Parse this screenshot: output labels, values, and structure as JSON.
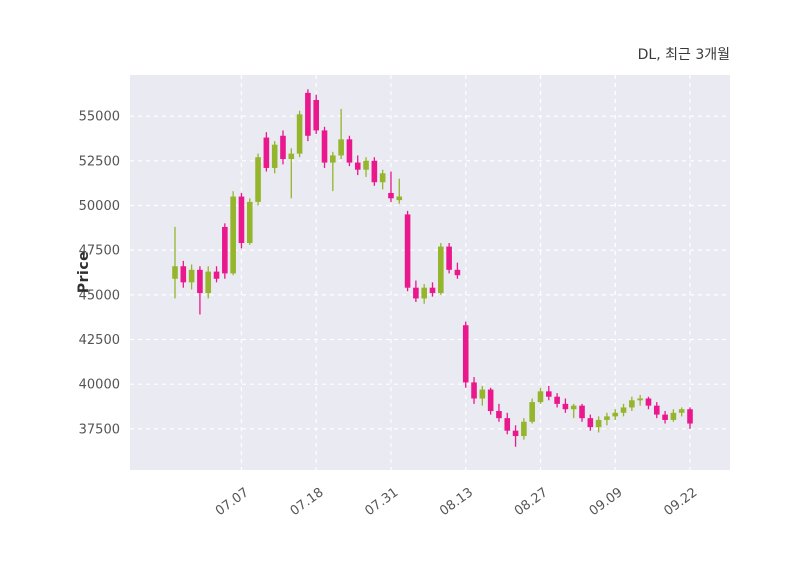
{
  "header": {
    "title": "DL, 최근 3개월"
  },
  "chart_data": {
    "type": "candlestick",
    "title": "DL, 최근 3개월",
    "xlabel": "",
    "ylabel": "Price",
    "ylim": [
      35200,
      57300
    ],
    "yticks": [
      37500,
      40000,
      42500,
      45000,
      47500,
      50000,
      52500,
      55000
    ],
    "xtick_labels": [
      "07.07",
      "07.18",
      "07.31",
      "08.13",
      "08.27",
      "09.09",
      "09.22"
    ],
    "xtick_indices": [
      8,
      17,
      26,
      35,
      44,
      53,
      62
    ],
    "grid": {
      "visible": true,
      "style": "dashed",
      "color": "#ffffff"
    },
    "legend": "none",
    "colors": {
      "up": "#94b52c",
      "down": "#e9188c",
      "plot_bg": "#eaeaf2",
      "tick_text": "#555555",
      "title_text": "#3a3a3a"
    },
    "candles_format": "[open, high, low, close]",
    "candles": [
      [
        45900,
        48800,
        44800,
        46600
      ],
      [
        46600,
        46900,
        45400,
        45700
      ],
      [
        45700,
        46700,
        45300,
        46400
      ],
      [
        46400,
        46600,
        43900,
        45100
      ],
      [
        45100,
        46600,
        44800,
        46300
      ],
      [
        46300,
        46600,
        45700,
        45900
      ],
      [
        48800,
        49000,
        45900,
        46200
      ],
      [
        46200,
        50800,
        46100,
        50500
      ],
      [
        50500,
        50700,
        47600,
        47900
      ],
      [
        47900,
        50400,
        47800,
        50200
      ],
      [
        50200,
        52900,
        50000,
        52700
      ],
      [
        53800,
        54100,
        51900,
        52100
      ],
      [
        52100,
        53600,
        51800,
        53400
      ],
      [
        53900,
        54200,
        52300,
        52600
      ],
      [
        52600,
        53200,
        50400,
        52900
      ],
      [
        52900,
        55300,
        52700,
        55100
      ],
      [
        56300,
        56500,
        53600,
        53900
      ],
      [
        55900,
        56200,
        54000,
        54200
      ],
      [
        54200,
        54400,
        52100,
        52400
      ],
      [
        52400,
        53000,
        50800,
        52800
      ],
      [
        52800,
        55400,
        52600,
        53700
      ],
      [
        53700,
        53900,
        52200,
        52400
      ],
      [
        52400,
        52800,
        51700,
        52000
      ],
      [
        52000,
        52700,
        51600,
        52500
      ],
      [
        52500,
        52700,
        51100,
        51300
      ],
      [
        51300,
        52000,
        50900,
        51800
      ],
      [
        50700,
        51900,
        50200,
        50400
      ],
      [
        50300,
        51500,
        50100,
        50500
      ],
      [
        49500,
        49700,
        45200,
        45400
      ],
      [
        45400,
        45800,
        44600,
        44800
      ],
      [
        44800,
        45600,
        44500,
        45400
      ],
      [
        45400,
        45700,
        44900,
        45100
      ],
      [
        45100,
        47900,
        45000,
        47700
      ],
      [
        47700,
        47900,
        46200,
        46400
      ],
      [
        46400,
        46800,
        45900,
        46100
      ],
      [
        43300,
        43500,
        39800,
        40100
      ],
      [
        40100,
        40400,
        38900,
        39200
      ],
      [
        39200,
        39900,
        38800,
        39700
      ],
      [
        39700,
        39800,
        38300,
        38500
      ],
      [
        38500,
        38900,
        37900,
        38100
      ],
      [
        38100,
        38400,
        37200,
        37400
      ],
      [
        37400,
        37700,
        36500,
        37100
      ],
      [
        37100,
        38100,
        36900,
        37900
      ],
      [
        37900,
        39200,
        37800,
        39000
      ],
      [
        39000,
        39800,
        38900,
        39600
      ],
      [
        39600,
        39900,
        39100,
        39300
      ],
      [
        39300,
        39500,
        38700,
        38900
      ],
      [
        38900,
        39200,
        38400,
        38600
      ],
      [
        38600,
        38900,
        38100,
        38800
      ],
      [
        38800,
        38900,
        37900,
        38100
      ],
      [
        38100,
        38300,
        37400,
        37600
      ],
      [
        37600,
        38200,
        37300,
        38000
      ],
      [
        38000,
        38400,
        37700,
        38200
      ],
      [
        38200,
        38600,
        38000,
        38400
      ],
      [
        38400,
        38900,
        38200,
        38700
      ],
      [
        38700,
        39300,
        38500,
        39100
      ],
      [
        39100,
        39400,
        38800,
        39200
      ],
      [
        39200,
        39300,
        38600,
        38800
      ],
      [
        38800,
        39000,
        38100,
        38300
      ],
      [
        38300,
        38500,
        37800,
        38000
      ],
      [
        38000,
        38600,
        37900,
        38400
      ],
      [
        38400,
        38700,
        38200,
        38600
      ],
      [
        38600,
        38700,
        37500,
        37800
      ]
    ]
  }
}
